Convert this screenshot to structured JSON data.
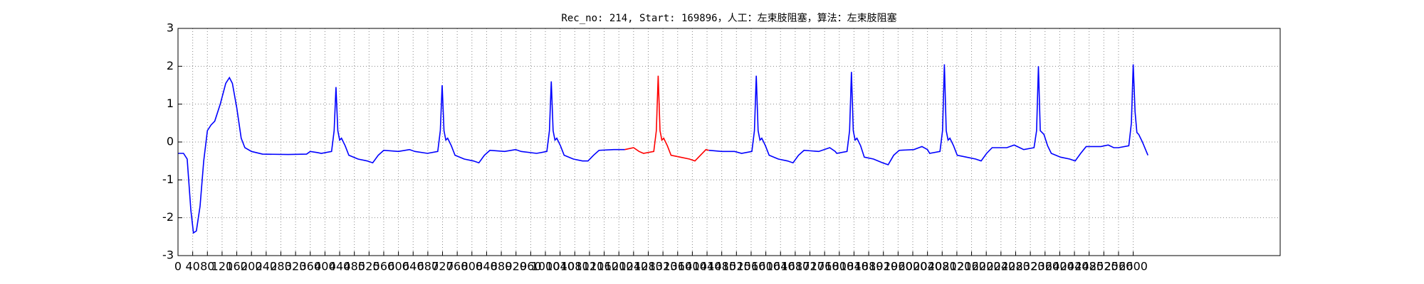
{
  "chart_data": {
    "type": "line",
    "title": "Rec_no: 214, Start: 169896，人工：左束肢阻塞，算法：左束肢阻塞",
    "xlim": [
      0,
      3000
    ],
    "ylim": [
      -3,
      3
    ],
    "xticks": [
      0,
      40,
      80,
      120,
      160,
      200,
      240,
      280,
      320,
      360,
      400,
      440,
      480,
      520,
      560,
      600,
      640,
      680,
      720,
      760,
      800,
      840,
      880,
      920,
      960,
      1000,
      1040,
      1080,
      1120,
      1160,
      1200,
      1240,
      1280,
      1320,
      1360,
      1400,
      1440,
      1480,
      1520,
      1560,
      1600,
      1640,
      1680,
      1720,
      1760,
      1800,
      1840,
      1880,
      1920,
      1960,
      2000,
      2040,
      2080,
      2120,
      2160,
      2200,
      2240,
      2280,
      2320,
      2360,
      2400,
      2440,
      2480,
      2520,
      2560,
      2600
    ],
    "yticks": [
      -3,
      -2,
      -1,
      0,
      1,
      2,
      3
    ],
    "grid": true,
    "series": [
      {
        "color": "#0000ff",
        "x": [
          0,
          15,
          25,
          35,
          42,
          50,
          60,
          70,
          80,
          90,
          100,
          115,
          130,
          140,
          148,
          160,
          172,
          182,
          200,
          230,
          300,
          350,
          360,
          380,
          390,
          418,
          425,
          430,
          435,
          440,
          445,
          455,
          465,
          490,
          515,
          530,
          545,
          560,
          600,
          630,
          645,
          679,
          707,
          714,
          719,
          724,
          729,
          734,
          744,
          754,
          779,
          804,
          819,
          834,
          849,
          889,
          919,
          934,
          976,
          1004,
          1011,
          1016,
          1021,
          1026,
          1031,
          1041,
          1051,
          1076,
          1101,
          1116,
          1131,
          1146,
          1186,
          1216,
          1307,
          1445,
          1480,
          1515,
          1534,
          1562,
          1569,
          1574,
          1579,
          1584,
          1589,
          1599,
          1609,
          1634,
          1659,
          1674,
          1689,
          1704,
          1744,
          1774,
          1789,
          1793,
          1821,
          1828,
          1833,
          1838,
          1843,
          1848,
          1858,
          1868,
          1893,
          1918,
          1933,
          1948,
          1963,
          2003,
          2025,
          2040,
          2046,
          2074,
          2081,
          2086,
          2091,
          2096,
          2101,
          2111,
          2121,
          2146,
          2171,
          2186,
          2201,
          2216,
          2256,
          2276,
          2291,
          2302,
          2330,
          2337,
          2342,
          2347,
          2352,
          2357,
          2367,
          2377,
          2402,
          2427,
          2442,
          2457,
          2472,
          2512,
          2532,
          2547,
          2560,
          2588,
          2595,
          2600,
          2605,
          2610,
          2615,
          2625,
          2640
        ],
        "values": [
          -0.3,
          -0.3,
          -0.45,
          -1.8,
          -2.4,
          -2.35,
          -1.7,
          -0.5,
          0.3,
          0.45,
          0.55,
          1.0,
          1.55,
          1.7,
          1.55,
          0.9,
          0.1,
          -0.15,
          -0.25,
          -0.32,
          -0.33,
          -0.32,
          -0.25,
          -0.28,
          -0.3,
          -0.25,
          0.3,
          1.45,
          0.3,
          0.05,
          0.1,
          -0.1,
          -0.35,
          -0.45,
          -0.5,
          -0.55,
          -0.35,
          -0.22,
          -0.25,
          -0.2,
          -0.25,
          -0.3,
          -0.25,
          0.3,
          1.5,
          0.3,
          0.05,
          0.1,
          -0.1,
          -0.35,
          -0.45,
          -0.5,
          -0.55,
          -0.35,
          -0.22,
          -0.25,
          -0.2,
          -0.25,
          -0.3,
          -0.25,
          0.3,
          1.6,
          0.3,
          0.05,
          0.1,
          -0.1,
          -0.35,
          -0.45,
          -0.5,
          -0.5,
          -0.35,
          -0.22,
          -0.2,
          -0.2,
          null,
          -0.22,
          -0.25,
          -0.25,
          -0.3,
          -0.25,
          0.3,
          1.75,
          0.3,
          0.05,
          0.1,
          -0.1,
          -0.35,
          -0.45,
          -0.5,
          -0.55,
          -0.35,
          -0.22,
          -0.25,
          -0.15,
          -0.25,
          -0.3,
          -0.25,
          0.3,
          1.85,
          0.3,
          0.05,
          0.1,
          -0.1,
          -0.4,
          -0.45,
          -0.55,
          -0.6,
          -0.35,
          -0.22,
          -0.2,
          -0.12,
          -0.2,
          -0.3,
          -0.25,
          0.3,
          2.05,
          0.3,
          0.05,
          0.1,
          -0.1,
          -0.35,
          -0.4,
          -0.45,
          -0.5,
          -0.3,
          -0.15,
          -0.15,
          -0.08,
          -0.15,
          -0.2,
          -0.15,
          0.3,
          2.0,
          0.3,
          0.25,
          0.2,
          -0.1,
          -0.3,
          -0.4,
          -0.45,
          -0.5,
          -0.3,
          -0.12,
          -0.12,
          -0.08,
          -0.15,
          -0.15,
          -0.1,
          0.5,
          2.05,
          0.8,
          0.25,
          0.2,
          0,
          -0.35
        ]
      },
      {
        "color": "#ff0000",
        "x": [
          1216,
          1240,
          1255,
          1267,
          1295,
          1302,
          1307,
          1312,
          1317,
          1322,
          1332,
          1342,
          1367,
          1392,
          1407,
          1422,
          1437,
          1445
        ],
        "values": [
          -0.2,
          -0.15,
          -0.25,
          -0.3,
          -0.25,
          0.3,
          1.75,
          0.3,
          0.05,
          0.1,
          -0.1,
          -0.35,
          -0.4,
          -0.45,
          -0.5,
          -0.35,
          -0.2,
          -0.22
        ]
      }
    ]
  }
}
